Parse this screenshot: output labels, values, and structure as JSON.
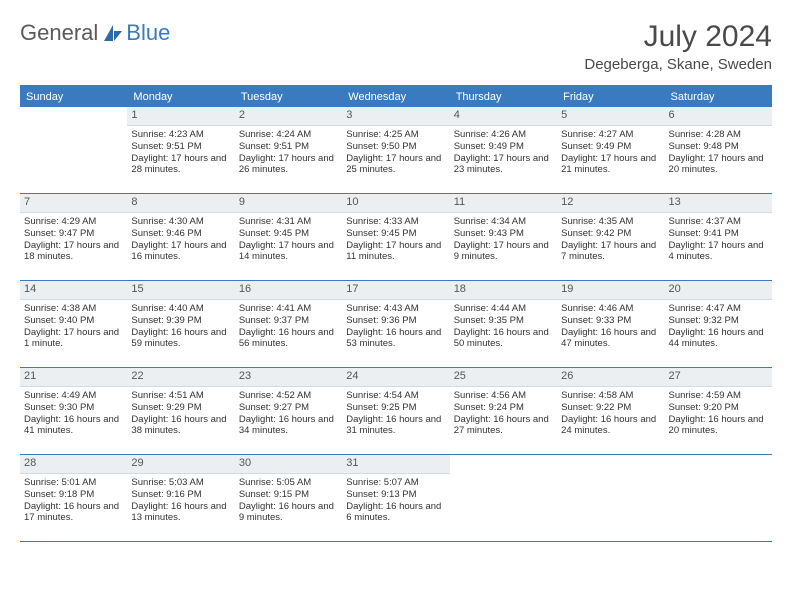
{
  "logo": {
    "text1": "General",
    "text2": "Blue"
  },
  "title": "July 2024",
  "location": "Degeberga, Skane, Sweden",
  "colors": {
    "header_blue": "#3a7bbf",
    "daynum_bg": "#eceff1",
    "text": "#333333",
    "title_text": "#4a4a4a"
  },
  "weekdays": [
    "Sunday",
    "Monday",
    "Tuesday",
    "Wednesday",
    "Thursday",
    "Friday",
    "Saturday"
  ],
  "weeks": [
    [
      {
        "n": "",
        "lines": []
      },
      {
        "n": "1",
        "lines": [
          "Sunrise: 4:23 AM",
          "Sunset: 9:51 PM",
          "Daylight: 17 hours and 28 minutes."
        ]
      },
      {
        "n": "2",
        "lines": [
          "Sunrise: 4:24 AM",
          "Sunset: 9:51 PM",
          "Daylight: 17 hours and 26 minutes."
        ]
      },
      {
        "n": "3",
        "lines": [
          "Sunrise: 4:25 AM",
          "Sunset: 9:50 PM",
          "Daylight: 17 hours and 25 minutes."
        ]
      },
      {
        "n": "4",
        "lines": [
          "Sunrise: 4:26 AM",
          "Sunset: 9:49 PM",
          "Daylight: 17 hours and 23 minutes."
        ]
      },
      {
        "n": "5",
        "lines": [
          "Sunrise: 4:27 AM",
          "Sunset: 9:49 PM",
          "Daylight: 17 hours and 21 minutes."
        ]
      },
      {
        "n": "6",
        "lines": [
          "Sunrise: 4:28 AM",
          "Sunset: 9:48 PM",
          "Daylight: 17 hours and 20 minutes."
        ]
      }
    ],
    [
      {
        "n": "7",
        "lines": [
          "Sunrise: 4:29 AM",
          "Sunset: 9:47 PM",
          "Daylight: 17 hours and 18 minutes."
        ]
      },
      {
        "n": "8",
        "lines": [
          "Sunrise: 4:30 AM",
          "Sunset: 9:46 PM",
          "Daylight: 17 hours and 16 minutes."
        ]
      },
      {
        "n": "9",
        "lines": [
          "Sunrise: 4:31 AM",
          "Sunset: 9:45 PM",
          "Daylight: 17 hours and 14 minutes."
        ]
      },
      {
        "n": "10",
        "lines": [
          "Sunrise: 4:33 AM",
          "Sunset: 9:45 PM",
          "Daylight: 17 hours and 11 minutes."
        ]
      },
      {
        "n": "11",
        "lines": [
          "Sunrise: 4:34 AM",
          "Sunset: 9:43 PM",
          "Daylight: 17 hours and 9 minutes."
        ]
      },
      {
        "n": "12",
        "lines": [
          "Sunrise: 4:35 AM",
          "Sunset: 9:42 PM",
          "Daylight: 17 hours and 7 minutes."
        ]
      },
      {
        "n": "13",
        "lines": [
          "Sunrise: 4:37 AM",
          "Sunset: 9:41 PM",
          "Daylight: 17 hours and 4 minutes."
        ]
      }
    ],
    [
      {
        "n": "14",
        "lines": [
          "Sunrise: 4:38 AM",
          "Sunset: 9:40 PM",
          "Daylight: 17 hours and 1 minute."
        ]
      },
      {
        "n": "15",
        "lines": [
          "Sunrise: 4:40 AM",
          "Sunset: 9:39 PM",
          "Daylight: 16 hours and 59 minutes."
        ]
      },
      {
        "n": "16",
        "lines": [
          "Sunrise: 4:41 AM",
          "Sunset: 9:37 PM",
          "Daylight: 16 hours and 56 minutes."
        ]
      },
      {
        "n": "17",
        "lines": [
          "Sunrise: 4:43 AM",
          "Sunset: 9:36 PM",
          "Daylight: 16 hours and 53 minutes."
        ]
      },
      {
        "n": "18",
        "lines": [
          "Sunrise: 4:44 AM",
          "Sunset: 9:35 PM",
          "Daylight: 16 hours and 50 minutes."
        ]
      },
      {
        "n": "19",
        "lines": [
          "Sunrise: 4:46 AM",
          "Sunset: 9:33 PM",
          "Daylight: 16 hours and 47 minutes."
        ]
      },
      {
        "n": "20",
        "lines": [
          "Sunrise: 4:47 AM",
          "Sunset: 9:32 PM",
          "Daylight: 16 hours and 44 minutes."
        ]
      }
    ],
    [
      {
        "n": "21",
        "lines": [
          "Sunrise: 4:49 AM",
          "Sunset: 9:30 PM",
          "Daylight: 16 hours and 41 minutes."
        ]
      },
      {
        "n": "22",
        "lines": [
          "Sunrise: 4:51 AM",
          "Sunset: 9:29 PM",
          "Daylight: 16 hours and 38 minutes."
        ]
      },
      {
        "n": "23",
        "lines": [
          "Sunrise: 4:52 AM",
          "Sunset: 9:27 PM",
          "Daylight: 16 hours and 34 minutes."
        ]
      },
      {
        "n": "24",
        "lines": [
          "Sunrise: 4:54 AM",
          "Sunset: 9:25 PM",
          "Daylight: 16 hours and 31 minutes."
        ]
      },
      {
        "n": "25",
        "lines": [
          "Sunrise: 4:56 AM",
          "Sunset: 9:24 PM",
          "Daylight: 16 hours and 27 minutes."
        ]
      },
      {
        "n": "26",
        "lines": [
          "Sunrise: 4:58 AM",
          "Sunset: 9:22 PM",
          "Daylight: 16 hours and 24 minutes."
        ]
      },
      {
        "n": "27",
        "lines": [
          "Sunrise: 4:59 AM",
          "Sunset: 9:20 PM",
          "Daylight: 16 hours and 20 minutes."
        ]
      }
    ],
    [
      {
        "n": "28",
        "lines": [
          "Sunrise: 5:01 AM",
          "Sunset: 9:18 PM",
          "Daylight: 16 hours and 17 minutes."
        ]
      },
      {
        "n": "29",
        "lines": [
          "Sunrise: 5:03 AM",
          "Sunset: 9:16 PM",
          "Daylight: 16 hours and 13 minutes."
        ]
      },
      {
        "n": "30",
        "lines": [
          "Sunrise: 5:05 AM",
          "Sunset: 9:15 PM",
          "Daylight: 16 hours and 9 minutes."
        ]
      },
      {
        "n": "31",
        "lines": [
          "Sunrise: 5:07 AM",
          "Sunset: 9:13 PM",
          "Daylight: 16 hours and 6 minutes."
        ]
      },
      {
        "n": "",
        "lines": []
      },
      {
        "n": "",
        "lines": []
      },
      {
        "n": "",
        "lines": []
      }
    ]
  ]
}
